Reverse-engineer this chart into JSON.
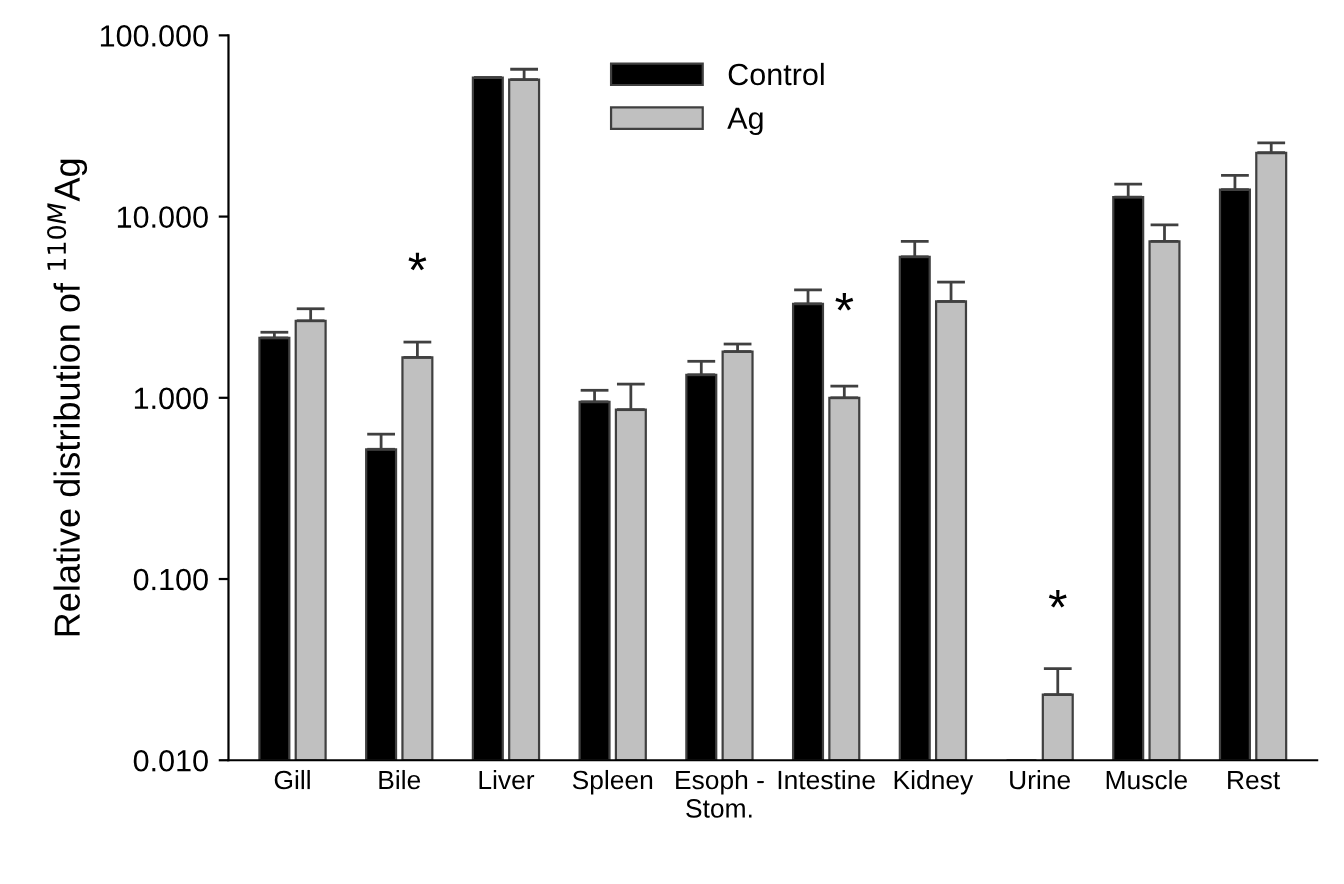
{
  "chart_data": {
    "type": "bar",
    "ylabel": "Relative distribution of $^{110M}$Ag",
    "categories": [
      "Gill",
      "Bile",
      "Liver",
      "Spleen",
      "Esoph -\nStom.",
      "Intestine",
      "Kidney",
      "Urine",
      "Muscle",
      "Rest"
    ],
    "series": [
      {
        "name": "Control",
        "color": "#000000",
        "values": [
          2.14,
          0.52,
          58.5,
          0.95,
          1.34,
          3.3,
          6.0,
          null,
          12.8,
          14.1
        ],
        "errors": [
          [
            2.14,
            2.3
          ],
          [
            0.52,
            0.63
          ],
          [
            58.5,
            58.5
          ],
          [
            0.95,
            1.1
          ],
          [
            1.34,
            1.59
          ],
          [
            3.3,
            3.94
          ],
          [
            6.0,
            7.3
          ],
          null,
          [
            12.8,
            15.1
          ],
          [
            14.1,
            16.9
          ]
        ]
      },
      {
        "name": "Ag",
        "color": "#c0c0c0",
        "values": [
          2.66,
          1.67,
          57,
          0.86,
          1.8,
          1.0,
          3.4,
          0.023,
          7.3,
          22.5
        ],
        "errors": [
          [
            2.66,
            3.1
          ],
          [
            1.67,
            2.03
          ],
          [
            57,
            65
          ],
          [
            0.86,
            1.19
          ],
          [
            1.8,
            1.98
          ],
          [
            1.0,
            1.16
          ],
          [
            3.4,
            4.35
          ],
          [
            0.023,
            0.032
          ],
          [
            7.3,
            9.0
          ],
          [
            22.5,
            25.5
          ]
        ]
      }
    ],
    "log": true,
    "ylim": [
      0.01,
      100
    ],
    "yticks": [
      {
        "value": 0.01,
        "label": "0.010"
      },
      {
        "value": 0.1,
        "label": "0.100"
      },
      {
        "value": 1,
        "label": "1.000"
      },
      {
        "value": 10,
        "label": "10.000"
      },
      {
        "value": 100,
        "label": "100.000"
      }
    ],
    "annotations": [
      {
        "text": "*",
        "x": "Bile",
        "y": 1.67
      },
      {
        "text": "*",
        "x": "Intestine",
        "y": 1.0
      },
      {
        "text": "*",
        "x": "Urine",
        "y": 0.023
      }
    ],
    "legend": "top",
    "grid": false
  }
}
